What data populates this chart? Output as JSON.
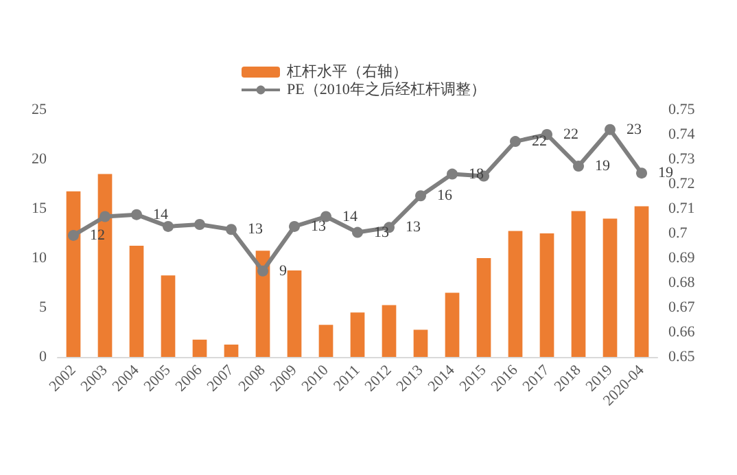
{
  "chart_data": {
    "type": "bar",
    "categories": [
      "2002",
      "2003",
      "2004",
      "2005",
      "2006",
      "2007",
      "2008",
      "2009",
      "2010",
      "2011",
      "2012",
      "2013",
      "2014",
      "2015",
      "2016",
      "2017",
      "2018",
      "2019",
      "2020-04"
    ],
    "series": [
      {
        "name": "杠杆水平（右轴）",
        "axis": "y2",
        "color": "#ed7d31",
        "values": [
          0.717,
          0.724,
          0.695,
          0.683,
          0.657,
          0.655,
          0.693,
          0.685,
          0.663,
          0.668,
          0.671,
          0.661,
          0.676,
          0.69,
          0.701,
          0.7,
          0.709,
          0.706,
          0.711
        ]
      },
      {
        "name": "PE（2010年之后经杠杆调整）",
        "type": "line",
        "color": "#7f7f7f",
        "marker": "circle",
        "values": [
          12.3,
          14.2,
          14.4,
          13.2,
          13.4,
          12.9,
          8.7,
          13.2,
          14.2,
          12.6,
          13.1,
          16.3,
          18.5,
          18.3,
          21.8,
          22.5,
          19.3,
          23,
          18.6
        ],
        "value_labels": [
          "12",
          null,
          "14",
          null,
          null,
          "13",
          "9",
          "13",
          "14",
          "13",
          "13",
          "16",
          "18",
          null,
          "22",
          "22",
          "19",
          "23",
          "19"
        ]
      }
    ],
    "ylim": [
      0,
      25
    ],
    "yticks": [
      0,
      5,
      10,
      15,
      20,
      25
    ],
    "y2lim": [
      0.65,
      0.75
    ],
    "y2ticks": [
      0.65,
      0.66,
      0.67,
      0.68,
      0.69,
      0.7,
      0.71,
      0.72,
      0.73,
      0.74,
      0.75
    ],
    "legend": "top",
    "grid": false
  }
}
